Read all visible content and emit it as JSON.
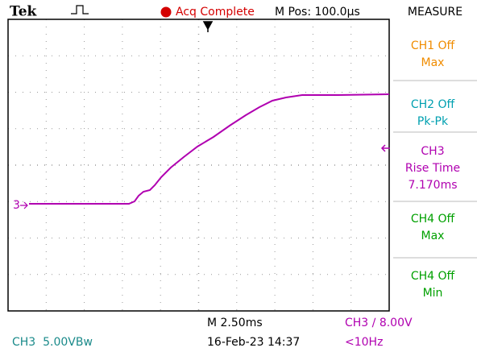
{
  "header": {
    "brand": "Tek",
    "status": "Acq Complete",
    "position": "M Pos: 100.0µs"
  },
  "measure": {
    "title": "MEASURE",
    "items": [
      {
        "lines": [
          "CH1 Off",
          "Max"
        ]
      },
      {
        "lines": [
          "CH2 Off",
          "Pk-Pk"
        ]
      },
      {
        "lines": [
          "CH3",
          "Rise Time",
          "7.170ms"
        ]
      },
      {
        "lines": [
          "CH4 Off",
          "Max"
        ]
      },
      {
        "lines": [
          "CH4 Off",
          "Min"
        ]
      }
    ]
  },
  "screen": {
    "channel_marker": "3"
  },
  "footer": {
    "timebase": "M 2.50ms",
    "trigger": "CH3 ∕ 8.00V",
    "channel_scale": "CH3  5.00VBw",
    "date": "16-Feb-23 14:37",
    "frequency": "<10Hz"
  }
}
